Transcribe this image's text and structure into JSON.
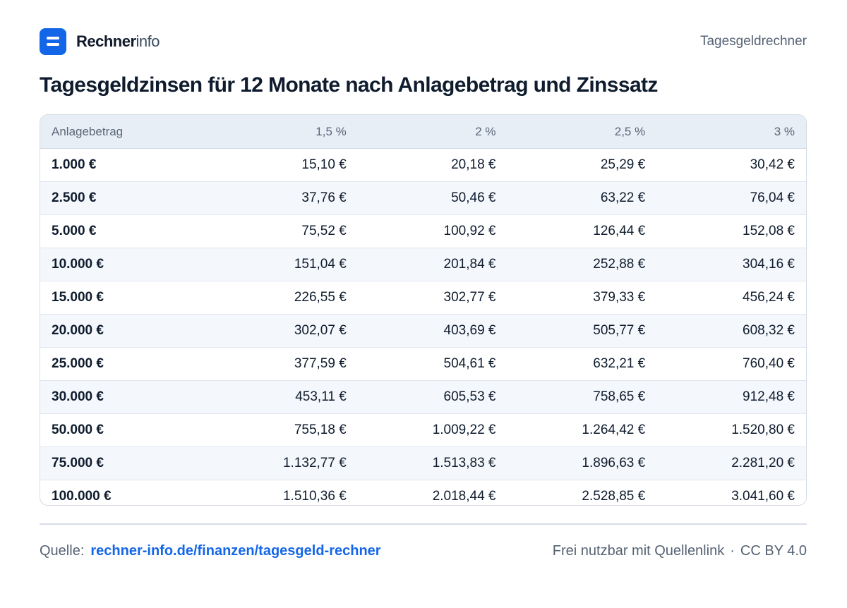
{
  "header": {
    "brand_bold": "Rechner",
    "brand_light": "info",
    "page_label": "Tagesgeldrechner"
  },
  "title": "Tagesgeldzinsen für 12 Monate nach Anlagebetrag und Zinssatz",
  "chart_data": {
    "type": "table",
    "title": "Tagesgeldzinsen für 12 Monate nach Anlagebetrag und Zinssatz",
    "columns": [
      "Anlagebetrag",
      "1,5 %",
      "2 %",
      "2,5 %",
      "3 %"
    ],
    "rows": [
      [
        "1.000 €",
        "15,10 €",
        "20,18 €",
        "25,29 €",
        "30,42 €"
      ],
      [
        "2.500 €",
        "37,76 €",
        "50,46 €",
        "63,22 €",
        "76,04 €"
      ],
      [
        "5.000 €",
        "75,52 €",
        "100,92 €",
        "126,44 €",
        "152,08 €"
      ],
      [
        "10.000 €",
        "151,04 €",
        "201,84 €",
        "252,88 €",
        "304,16 €"
      ],
      [
        "15.000 €",
        "226,55 €",
        "302,77 €",
        "379,33 €",
        "456,24 €"
      ],
      [
        "20.000 €",
        "302,07 €",
        "403,69 €",
        "505,77 €",
        "608,32 €"
      ],
      [
        "25.000 €",
        "377,59 €",
        "504,61 €",
        "632,21 €",
        "760,40 €"
      ],
      [
        "30.000 €",
        "453,11 €",
        "605,53 €",
        "758,65 €",
        "912,48 €"
      ],
      [
        "50.000 €",
        "755,18 €",
        "1.009,22 €",
        "1.264,42 €",
        "1.520,80 €"
      ],
      [
        "75.000 €",
        "1.132,77 €",
        "1.513,83 €",
        "1.896,63 €",
        "2.281,20 €"
      ],
      [
        "100.000 €",
        "1.510,36 €",
        "2.018,44 €",
        "2.528,85 €",
        "3.041,60 €"
      ]
    ]
  },
  "footer": {
    "source_label": "Quelle:",
    "source_link": "rechner-info.de/finanzen/tagesgeld-rechner",
    "license_text": "Frei nutzbar mit Quellenlink",
    "separator": "·",
    "license": "CC BY 4.0"
  },
  "colors": {
    "accent": "#1466e8",
    "header_bg": "#e8eef6",
    "stripe": "#f4f7fb",
    "text": "#0f1c2e",
    "muted": "#556274"
  }
}
